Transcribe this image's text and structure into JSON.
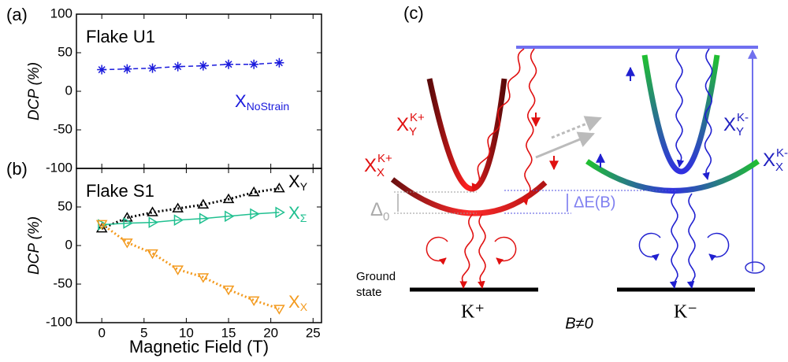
{
  "chart_data": [
    {
      "type": "line",
      "panel_label": "(a)",
      "annotation": "Flake U1",
      "ylabel": "DCP (%)",
      "x": [
        0,
        3,
        6,
        9,
        12,
        15,
        18,
        21
      ],
      "xlim": [
        -3,
        26
      ],
      "xticks": [
        0,
        5,
        10,
        15,
        20,
        25
      ],
      "show_xtick_labels": false,
      "ylim": [
        -100,
        100
      ],
      "yticks": [
        -100,
        -50,
        0,
        50,
        100
      ],
      "series": [
        {
          "name": "X",
          "name_sub": "NoStrain",
          "color": "#1a1adc",
          "marker": "asterisk",
          "dash": "6,4",
          "values": [
            28,
            29,
            30,
            32,
            33,
            35,
            35,
            37
          ]
        }
      ]
    },
    {
      "type": "line",
      "panel_label": "(b)",
      "annotation": "Flake S1",
      "ylabel": "DCP (%)",
      "xlabel": "Magnetic Field (T)",
      "x": [
        0,
        3,
        6,
        9,
        12,
        15,
        18,
        21
      ],
      "xlim": [
        -3,
        26
      ],
      "xticks": [
        0,
        5,
        10,
        15,
        20,
        25
      ],
      "show_xtick_labels": true,
      "ylim": [
        -100,
        100
      ],
      "yticks": [
        -100,
        -50,
        0,
        50
      ],
      "series": [
        {
          "name": "X",
          "name_sub": "Y",
          "color": "#000000",
          "marker": "triangle-up",
          "dash": "2,3",
          "values": [
            22,
            36,
            43,
            48,
            53,
            60,
            69,
            74
          ]
        },
        {
          "name": "X",
          "name_sub": "Σ",
          "color": "#20c090",
          "marker": "triangle-right",
          "dash": "none",
          "values": [
            27,
            29,
            30,
            33,
            35,
            38,
            41,
            43
          ]
        },
        {
          "name": "X",
          "name_sub": "X",
          "color": "#f39a1e",
          "marker": "triangle-down",
          "dash": "2,3",
          "values": [
            28,
            4,
            -10,
            -31,
            -41,
            -57,
            -71,
            -82
          ]
        }
      ]
    }
  ],
  "diagram": {
    "panel_label": "(c)",
    "labels": {
      "xy_kplus": {
        "base": "X",
        "sub": "Y",
        "sup": "K+"
      },
      "xx_kplus": {
        "base": "X",
        "sub": "X",
        "sup": "K+"
      },
      "xy_kminus": {
        "base": "X",
        "sub": "Y",
        "sup": "K-"
      },
      "xx_kminus": {
        "base": "X",
        "sub": "X",
        "sup": "K-"
      },
      "delta0": {
        "base": "Δ",
        "sub": "0"
      },
      "delta_e": "ΔE(B)",
      "ground_state": [
        "Ground",
        "state"
      ],
      "kplus": "K⁺",
      "kminus": "K⁻",
      "field": "B≠0"
    }
  }
}
